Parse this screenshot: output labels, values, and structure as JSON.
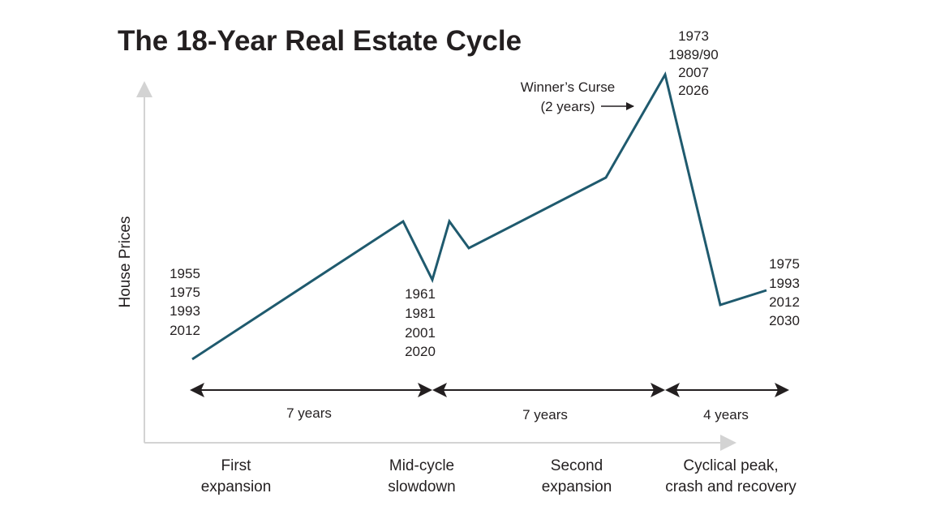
{
  "title": "The 18-Year Real Estate Cycle",
  "y_axis_label": "House Prices",
  "colors": {
    "line": "#1f5a6e",
    "axis": "#d3d3d3",
    "arrow": "#231f20",
    "text": "#231f20"
  },
  "year_groups": {
    "start": [
      "1955",
      "1975",
      "1993",
      "2012"
    ],
    "mid_cycle": [
      "1961",
      "1981",
      "2001",
      "2020"
    ],
    "peak": [
      "1973",
      "1989/90",
      "2007",
      "2026"
    ],
    "end": [
      "1975",
      "1993",
      "2012",
      "2030"
    ]
  },
  "winners_curse": {
    "line1": "Winner’s Curse",
    "line2": "(2 years)"
  },
  "durations": [
    "7 years",
    "7 years",
    "4 years"
  ],
  "phases": [
    {
      "line1": "First",
      "line2": "expansion"
    },
    {
      "line1": "Mid-cycle",
      "line2": "slowdown"
    },
    {
      "line1": "Second",
      "line2": "expansion"
    },
    {
      "line1": "Cyclical peak,",
      "line2": "crash and recovery"
    }
  ]
}
